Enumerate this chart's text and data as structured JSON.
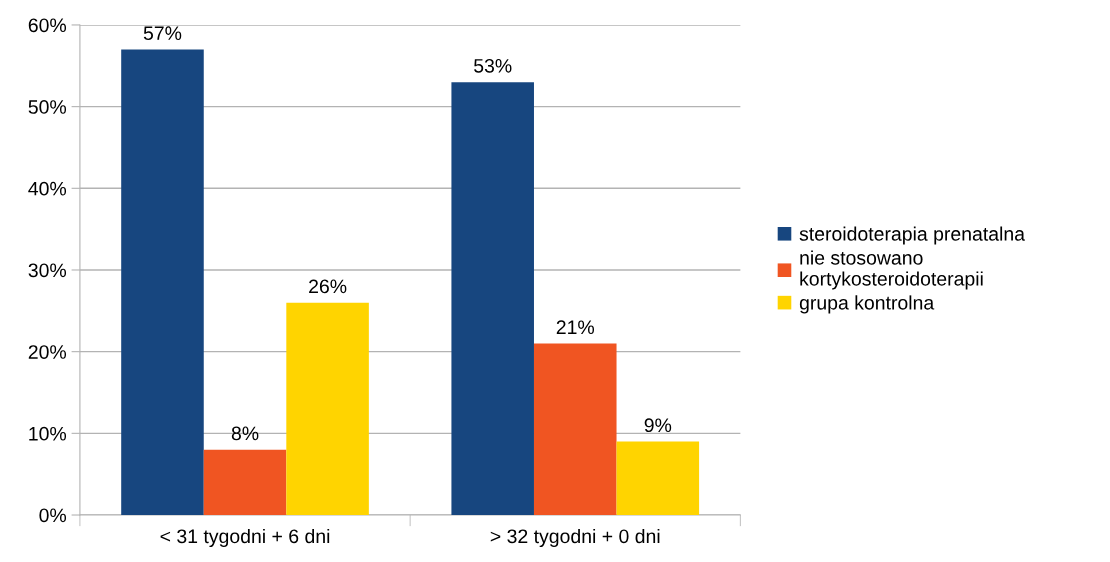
{
  "chart_data": {
    "type": "bar",
    "categories": [
      "< 31 tygodni + 6 dni",
      "> 32 tygodni + 0 dni"
    ],
    "series": [
      {
        "name": "steroidoterapia prenatalna",
        "color": "#17467f",
        "values": [
          57,
          53
        ],
        "value_labels": [
          "57%",
          "53%"
        ]
      },
      {
        "name": "nie stosowano\nkortykosteroidoterapii",
        "color": "#f05522",
        "values": [
          8,
          21
        ],
        "value_labels": [
          "8%",
          "21%"
        ]
      },
      {
        "name": "grupa kontrolna",
        "color": "#ffd400",
        "values": [
          26,
          9
        ],
        "value_labels": [
          "26%",
          "9%"
        ]
      }
    ],
    "ylim": [
      0,
      60
    ],
    "yticks": [
      {
        "value": 0,
        "label": "0%"
      },
      {
        "value": 10,
        "label": "10%"
      },
      {
        "value": 20,
        "label": "20%"
      },
      {
        "value": 30,
        "label": "30%"
      },
      {
        "value": 40,
        "label": "40%"
      },
      {
        "value": 50,
        "label": "50%"
      },
      {
        "value": 60,
        "label": "60%"
      }
    ],
    "grid": "y",
    "legend": "right"
  }
}
